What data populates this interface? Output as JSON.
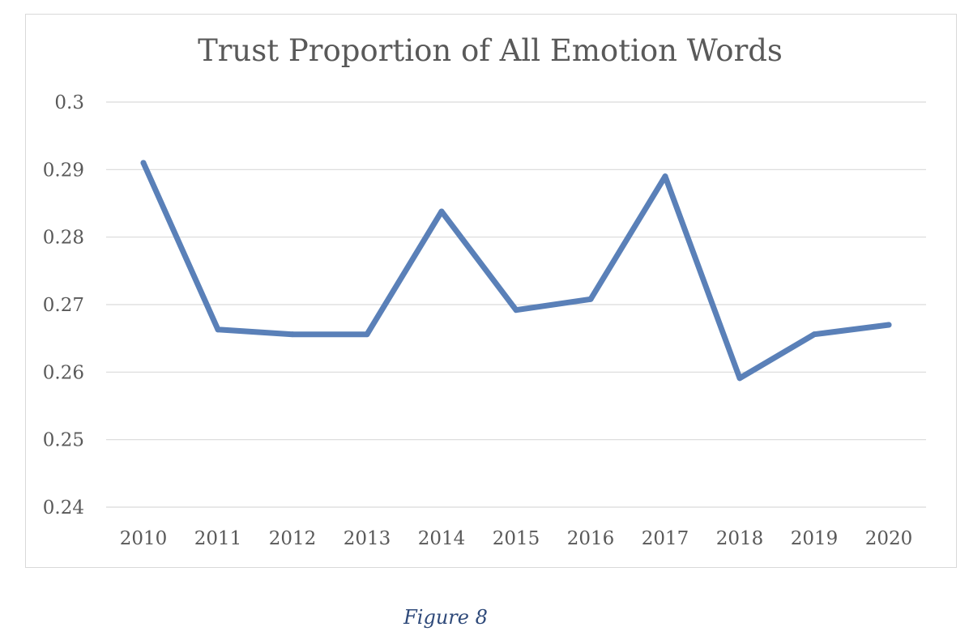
{
  "chart_data": {
    "type": "line",
    "title": "Trust Proportion of All Emotion Words",
    "xlabel": "",
    "ylabel": "",
    "categories": [
      "2010",
      "2011",
      "2012",
      "2013",
      "2014",
      "2015",
      "2016",
      "2017",
      "2018",
      "2019",
      "2020"
    ],
    "series": [
      {
        "values": [
          0.291,
          0.2663,
          0.2656,
          0.2656,
          0.2838,
          0.2692,
          0.2708,
          0.289,
          0.2591,
          0.2656,
          0.267
        ],
        "color": "#5a80b8"
      }
    ],
    "ylim": [
      0.24,
      0.3
    ],
    "yticks": [
      "0.24",
      "0.25",
      "0.26",
      "0.27",
      "0.28",
      "0.29",
      "0.3"
    ],
    "grid": true,
    "legend": "none"
  },
  "caption": "Figure 8"
}
